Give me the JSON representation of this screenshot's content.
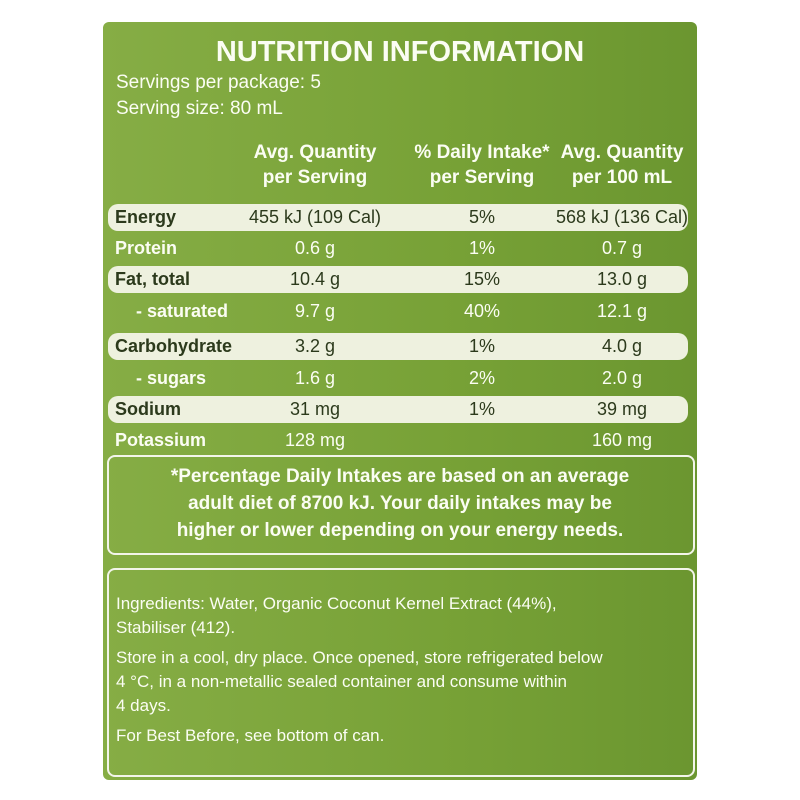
{
  "header": {
    "title": "NUTRITION INFORMATION",
    "servings": "Servings per package: 5",
    "serving_size": "Serving size: 80 mL"
  },
  "table": {
    "columns": [
      [
        "Avg. Quantity",
        "per Serving"
      ],
      [
        "% Daily Intake*",
        "per Serving"
      ],
      [
        "Avg. Quantity",
        "per 100 mL"
      ]
    ],
    "rows": [
      {
        "label": "Energy",
        "per_serving": "455 kJ (109 Cal)",
        "daily_intake": "5%",
        "per_100ml": "568 kJ (136 Cal)"
      },
      {
        "label": "Protein",
        "per_serving": "0.6 g",
        "daily_intake": "1%",
        "per_100ml": "0.7 g"
      },
      {
        "label": "Fat, total",
        "per_serving": "10.4 g",
        "daily_intake": "15%",
        "per_100ml": "13.0 g"
      },
      {
        "label": "- saturated",
        "per_serving": "9.7 g",
        "daily_intake": "40%",
        "per_100ml": "12.1 g"
      },
      {
        "label": "Carbohydrate",
        "per_serving": "3.2 g",
        "daily_intake": "1%",
        "per_100ml": "4.0 g"
      },
      {
        "label": "- sugars",
        "per_serving": "1.6 g",
        "daily_intake": "2%",
        "per_100ml": "2.0 g"
      },
      {
        "label": "Sodium",
        "per_serving": "31 mg",
        "daily_intake": "1%",
        "per_100ml": "39 mg"
      },
      {
        "label": "Potassium",
        "per_serving": "128 mg",
        "per_100ml": "160 mg"
      }
    ]
  },
  "footnote": [
    "*Percentage Daily Intakes are based on an average",
    "adult diet of 8700 kJ. Your daily intakes may be",
    "higher or lower depending on your energy needs."
  ],
  "ingredients": [
    [
      "Ingredients: Water, Organic Coconut Kernel Extract (44%),",
      "Stabiliser (412)."
    ],
    [
      "Store in a cool, dry place. Once opened, store refrigerated below",
      "4 °C, in a non-metallic sealed container and consume within",
      "4 days."
    ],
    [
      "For Best Before, see bottom of can."
    ]
  ]
}
